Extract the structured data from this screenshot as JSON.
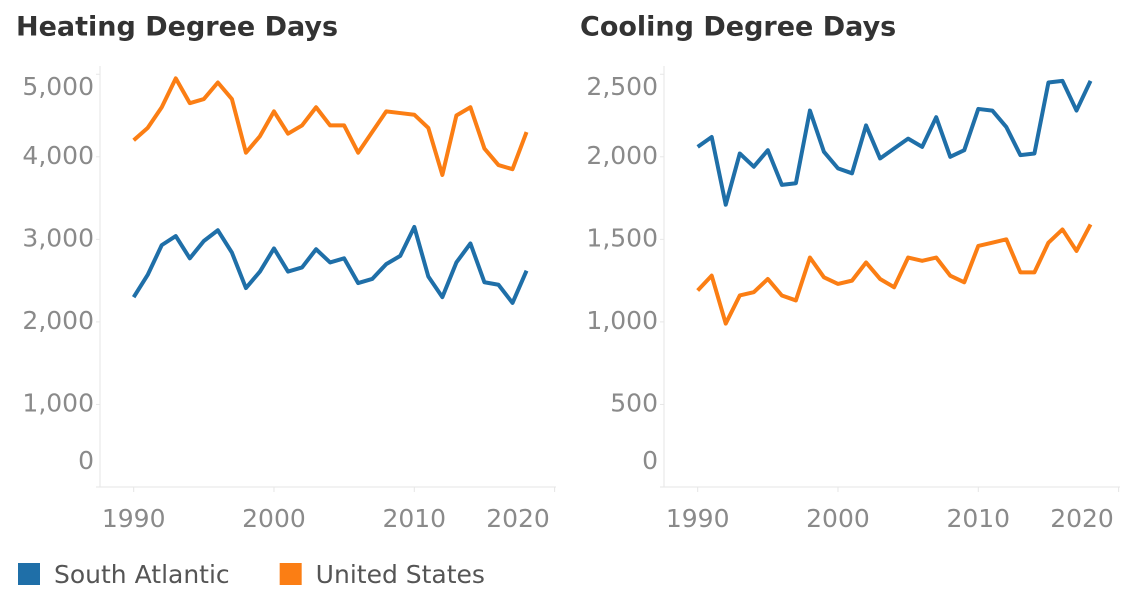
{
  "chart_data": [
    {
      "type": "line",
      "title": "Heating Degree Days",
      "x": [
        1990,
        1991,
        1992,
        1993,
        1994,
        1995,
        1996,
        1997,
        1998,
        1999,
        2000,
        2001,
        2002,
        2003,
        2004,
        2005,
        2006,
        2007,
        2008,
        2009,
        2010,
        2011,
        2012,
        2013,
        2014,
        2015,
        2016,
        2017,
        2018
      ],
      "series": [
        {
          "name": "South Atlantic",
          "color": "#1f6fa8",
          "values": [
            2300,
            2570,
            2930,
            3040,
            2770,
            2980,
            3110,
            2840,
            2410,
            2610,
            2890,
            2610,
            2660,
            2880,
            2720,
            2770,
            2470,
            2520,
            2700,
            2800,
            3150,
            2550,
            2300,
            2720,
            2950,
            2480,
            2450,
            2230,
            2620
          ]
        },
        {
          "name": "United States",
          "color": "#fb7e14",
          "values": [
            4200,
            4350,
            4600,
            4950,
            4650,
            4700,
            4900,
            4700,
            4050,
            4250,
            4550,
            4280,
            4380,
            4600,
            4380,
            4380,
            4050,
            4300,
            4550,
            4530,
            4510,
            4350,
            3780,
            4500,
            4600,
            4100,
            3900,
            3850,
            4300
          ]
        }
      ],
      "xlim": [
        1987.6,
        2020.1
      ],
      "xticks": [
        1990,
        2000,
        2010,
        2020
      ],
      "ylim": [
        0,
        5100
      ],
      "yticks": [
        0,
        {
          "value": 1000,
          "label": "1,000"
        },
        {
          "value": 2000,
          "label": "2,000"
        },
        {
          "value": 3000,
          "label": "3,000"
        },
        {
          "value": 4000,
          "label": "4,000"
        },
        {
          "value": 5000,
          "label": "5,000"
        }
      ]
    },
    {
      "type": "line",
      "title": "Cooling Degree Days",
      "x": [
        1990,
        1991,
        1992,
        1993,
        1994,
        1995,
        1996,
        1997,
        1998,
        1999,
        2000,
        2001,
        2002,
        2003,
        2004,
        2005,
        2006,
        2007,
        2008,
        2009,
        2010,
        2011,
        2012,
        2013,
        2014,
        2015,
        2016,
        2017,
        2018
      ],
      "series": [
        {
          "name": "South Atlantic",
          "color": "#1f6fa8",
          "values": [
            2060,
            2120,
            1710,
            2020,
            1940,
            2040,
            1830,
            1840,
            2280,
            2030,
            1930,
            1900,
            2190,
            1990,
            2050,
            2110,
            2060,
            2240,
            2000,
            2040,
            2290,
            2280,
            2180,
            2010,
            2020,
            2450,
            2460,
            2280,
            2460
          ]
        },
        {
          "name": "United States",
          "color": "#fb7e14",
          "values": [
            1190,
            1280,
            990,
            1160,
            1180,
            1260,
            1160,
            1130,
            1390,
            1270,
            1230,
            1250,
            1360,
            1260,
            1210,
            1390,
            1370,
            1390,
            1280,
            1240,
            1460,
            1480,
            1500,
            1300,
            1300,
            1480,
            1560,
            1430,
            1590
          ]
        }
      ],
      "xlim": [
        1987.6,
        2020.1
      ],
      "xticks": [
        1990,
        2000,
        2010,
        2020
      ],
      "ylim": [
        0,
        2550
      ],
      "yticks": [
        0,
        500,
        {
          "value": 1000,
          "label": "1,000"
        },
        {
          "value": 1500,
          "label": "1,500"
        },
        {
          "value": 2000,
          "label": "2,000"
        },
        {
          "value": 2500,
          "label": "2,500"
        }
      ]
    }
  ]
}
